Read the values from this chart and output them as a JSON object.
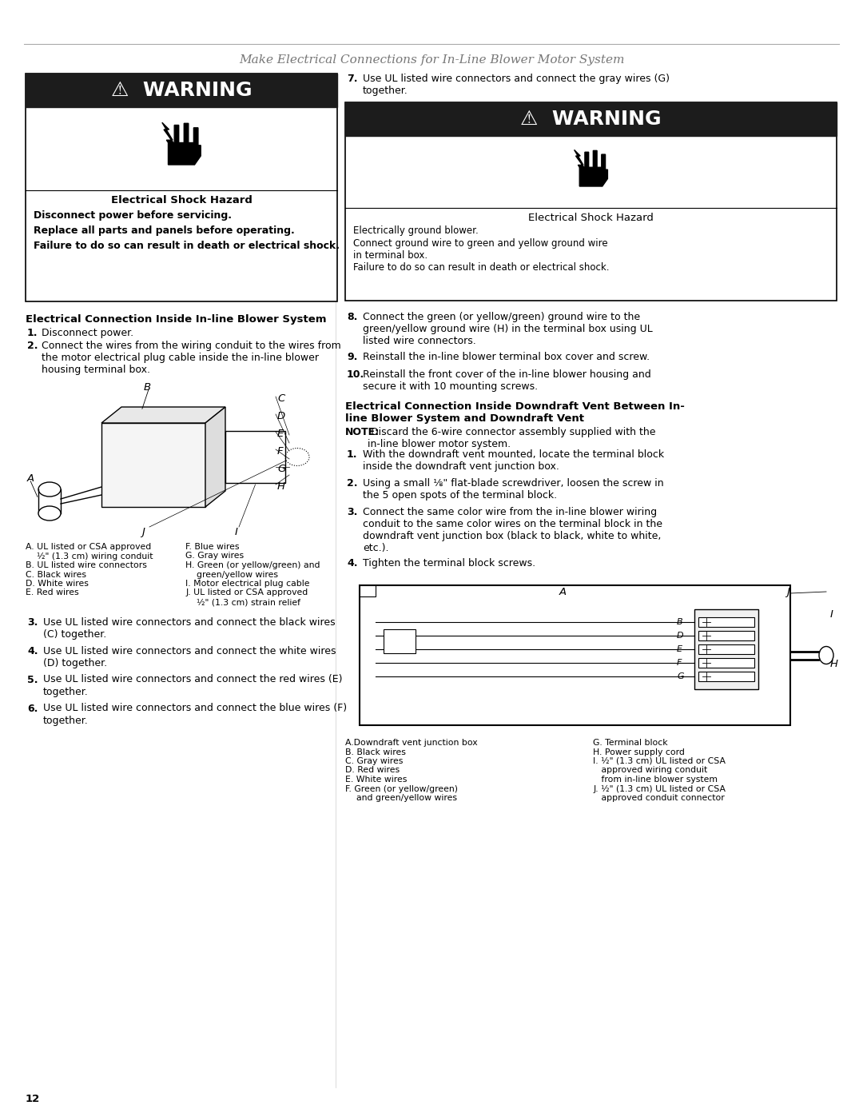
{
  "page_title": "Make Electrical Connections for In-Line Blower Motor System",
  "page_number": "12",
  "bg_color": "#ffffff",
  "title_color": "#777777",
  "warning_bg": "#1c1c1c",
  "warning_text_color": "#ffffff",
  "border_color": "#000000",
  "text_color": "#000000",
  "left_warning_title": "Electrical Shock Hazard",
  "left_warning_lines": [
    "Disconnect power before servicing.",
    "Replace all parts and panels before operating.",
    "Failure to do so can result in death or electrical shock."
  ],
  "section1_title": "Electrical Connection Inside In-line Blower System",
  "section1_step1": "Disconnect power.",
  "section1_step2": "Connect the wires from the wiring conduit to the wires from\nthe motor electrical plug cable inside the in-line blower\nhousing terminal box.",
  "left_legend_col1": [
    "A. UL listed or CSA approved",
    "    ½\" (1.3 cm) wiring conduit",
    "B. UL listed wire connectors",
    "C. Black wires",
    "D. White wires",
    "E. Red wires"
  ],
  "left_legend_col2": [
    "F. Blue wires",
    "G. Gray wires",
    "H. Green (or yellow/green) and",
    "    green/yellow wires",
    "I. Motor electrical plug cable",
    "J. UL listed or CSA approved",
    "    ½\" (1.3 cm) strain relief"
  ],
  "steps_3_to_6": [
    [
      "3.",
      "Use UL listed wire connectors and connect the black wires\n(C) together."
    ],
    [
      "4.",
      "Use UL listed wire connectors and connect the white wires\n(D) together."
    ],
    [
      "5.",
      "Use UL listed wire connectors and connect the red wires (E)\ntogether."
    ],
    [
      "6.",
      "Use UL listed wire connectors and connect the blue wires (F)\ntogether."
    ]
  ],
  "right_step7_num": "7.",
  "right_step7": "Use UL listed wire connectors and connect the gray wires (G)\ntogether.",
  "right_warning_title": "Electrical Shock Hazard",
  "right_warning_lines": [
    "Electrically ground blower.",
    "Connect ground wire to green and yellow ground wire\nin terminal box.",
    "Failure to do so can result in death or electrical shock."
  ],
  "steps_8_to_10": [
    [
      "8.",
      "Connect the green (or yellow/green) ground wire to the\ngreen/yellow ground wire (H) in the terminal box using UL\nlisted wire connectors."
    ],
    [
      "9.",
      "Reinstall the in-line blower terminal box cover and screw."
    ],
    [
      "10.",
      "Reinstall the front cover of the in-line blower housing and\nsecure it with 10 mounting screws."
    ]
  ],
  "section2_title": "Electrical Connection Inside Downdraft Vent Between In-\nline Blower System and Downdraft Vent",
  "section2_note_bold": "NOTE:",
  "section2_note_rest": " Discard the 6-wire connector assembly supplied with the\nin-line blower motor system.",
  "section2_steps": [
    [
      "1.",
      "With the downdraft vent mounted, locate the terminal block\ninside the downdraft vent junction box."
    ],
    [
      "2.",
      "Using a small ⅛\" flat-blade screwdriver, loosen the screw in\nthe 5 open spots of the terminal block."
    ],
    [
      "3.",
      "Connect the same color wire from the in-line blower wiring\nconduit to the same color wires on the terminal block in the\ndowndraft vent junction box (black to black, white to white,\netc.)."
    ],
    [
      "4.",
      "Tighten the terminal block screws."
    ]
  ],
  "right_legend_col1": [
    "A.Downdraft vent junction box",
    "B. Black wires",
    "C. Gray wires",
    "D. Red wires",
    "E. White wires",
    "F. Green (or yellow/green)",
    "    and green/yellow wires"
  ],
  "right_legend_col2": [
    "G. Terminal block",
    "H. Power supply cord",
    "I. ½\" (1.3 cm) UL listed or CSA",
    "   approved wiring conduit",
    "   from in-line blower system",
    "J. ½\" (1.3 cm) UL listed or CSA",
    "   approved conduit connector"
  ]
}
